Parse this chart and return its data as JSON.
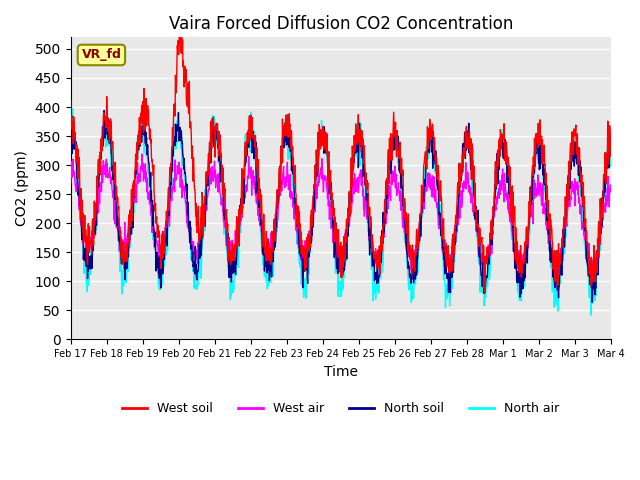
{
  "title": "Vaira Forced Diffusion CO2 Concentration",
  "xlabel": "Time",
  "ylabel": "CO2 (ppm)",
  "ylim": [
    0,
    520
  ],
  "yticks": [
    0,
    50,
    100,
    150,
    200,
    250,
    300,
    350,
    400,
    450,
    500
  ],
  "legend_entries": [
    "West soil",
    "West air",
    "North soil",
    "North air"
  ],
  "colors": [
    "red",
    "magenta",
    "darkblue",
    "cyan"
  ],
  "bg_color": "#e8e8e8",
  "annotation_text": "VR_fd",
  "xtick_labels": [
    "Feb 17",
    "Feb 18",
    "Feb 19",
    "Feb 20",
    "Feb 21",
    "Feb 22",
    "Feb 23",
    "Feb 24",
    "Feb 25",
    "Feb 26",
    "Feb 27",
    "Feb 28",
    "Mar 1",
    "Mar 2",
    "Mar 3",
    "Mar 4"
  ],
  "n_points": 1440,
  "seed": 7
}
